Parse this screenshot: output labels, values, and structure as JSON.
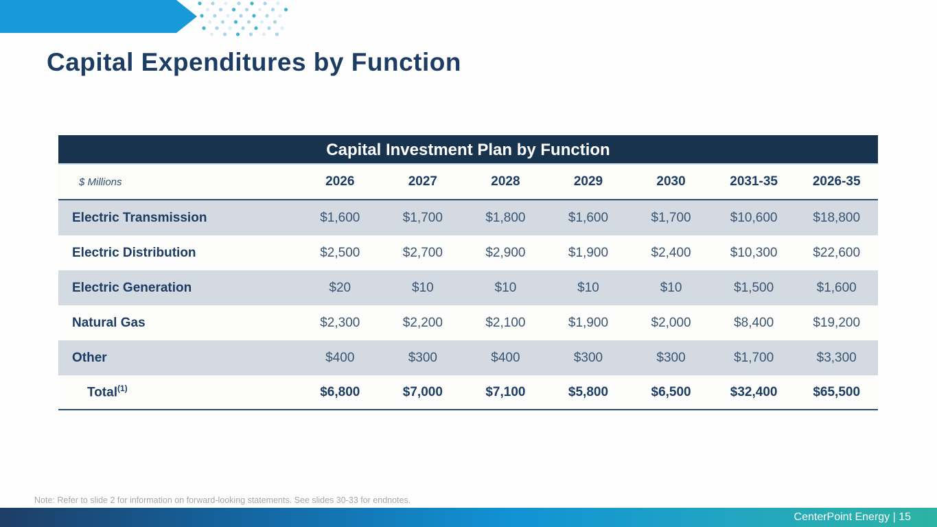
{
  "slide": {
    "title": "Capital Expenditures by Function",
    "note": "Note: Refer to slide 2 for information on forward-looking statements. See slides 30-33 for endnotes.",
    "footer_text": "CenterPoint Energy | 15"
  },
  "theme": {
    "accent_blue": "#189ad8",
    "header_navy": "#17334e",
    "text_navy": "#1c3c63",
    "row_gray": "#d3dae1",
    "footer_gradient_left": "#1d3e66",
    "footer_gradient_mid": "#1193d4",
    "footer_gradient_right": "#2db3a3",
    "dot_teal": "#3eb5cc",
    "dot_light": "#a9d5e8",
    "dot_pale": "#dcedf4"
  },
  "chart_data": {
    "type": "table",
    "title": "Capital Investment Plan by Function",
    "unit_label": "$ Millions",
    "columns": [
      "2026",
      "2027",
      "2028",
      "2029",
      "2030",
      "2031-35",
      "2026-35"
    ],
    "rows": [
      {
        "label": "Electric Transmission",
        "values": [
          "$1,600",
          "$1,700",
          "$1,800",
          "$1,600",
          "$1,700",
          "$10,600",
          "$18,800"
        ]
      },
      {
        "label": "Electric Distribution",
        "values": [
          "$2,500",
          "$2,700",
          "$2,900",
          "$1,900",
          "$2,400",
          "$10,300",
          "$22,600"
        ]
      },
      {
        "label": "Electric Generation",
        "values": [
          "$20",
          "$10",
          "$10",
          "$10",
          "$10",
          "$1,500",
          "$1,600"
        ]
      },
      {
        "label": "Natural Gas",
        "values": [
          "$2,300",
          "$2,200",
          "$2,100",
          "$1,900",
          "$2,000",
          "$8,400",
          "$19,200"
        ]
      },
      {
        "label": "Other",
        "values": [
          "$400",
          "$300",
          "$400",
          "$300",
          "$300",
          "$1,700",
          "$3,300"
        ]
      }
    ],
    "total_row": {
      "label": "Total",
      "superscript": "(1)",
      "values": [
        "$6,800",
        "$7,000",
        "$7,100",
        "$5,800",
        "$6,500",
        "$32,400",
        "$65,500"
      ]
    }
  }
}
